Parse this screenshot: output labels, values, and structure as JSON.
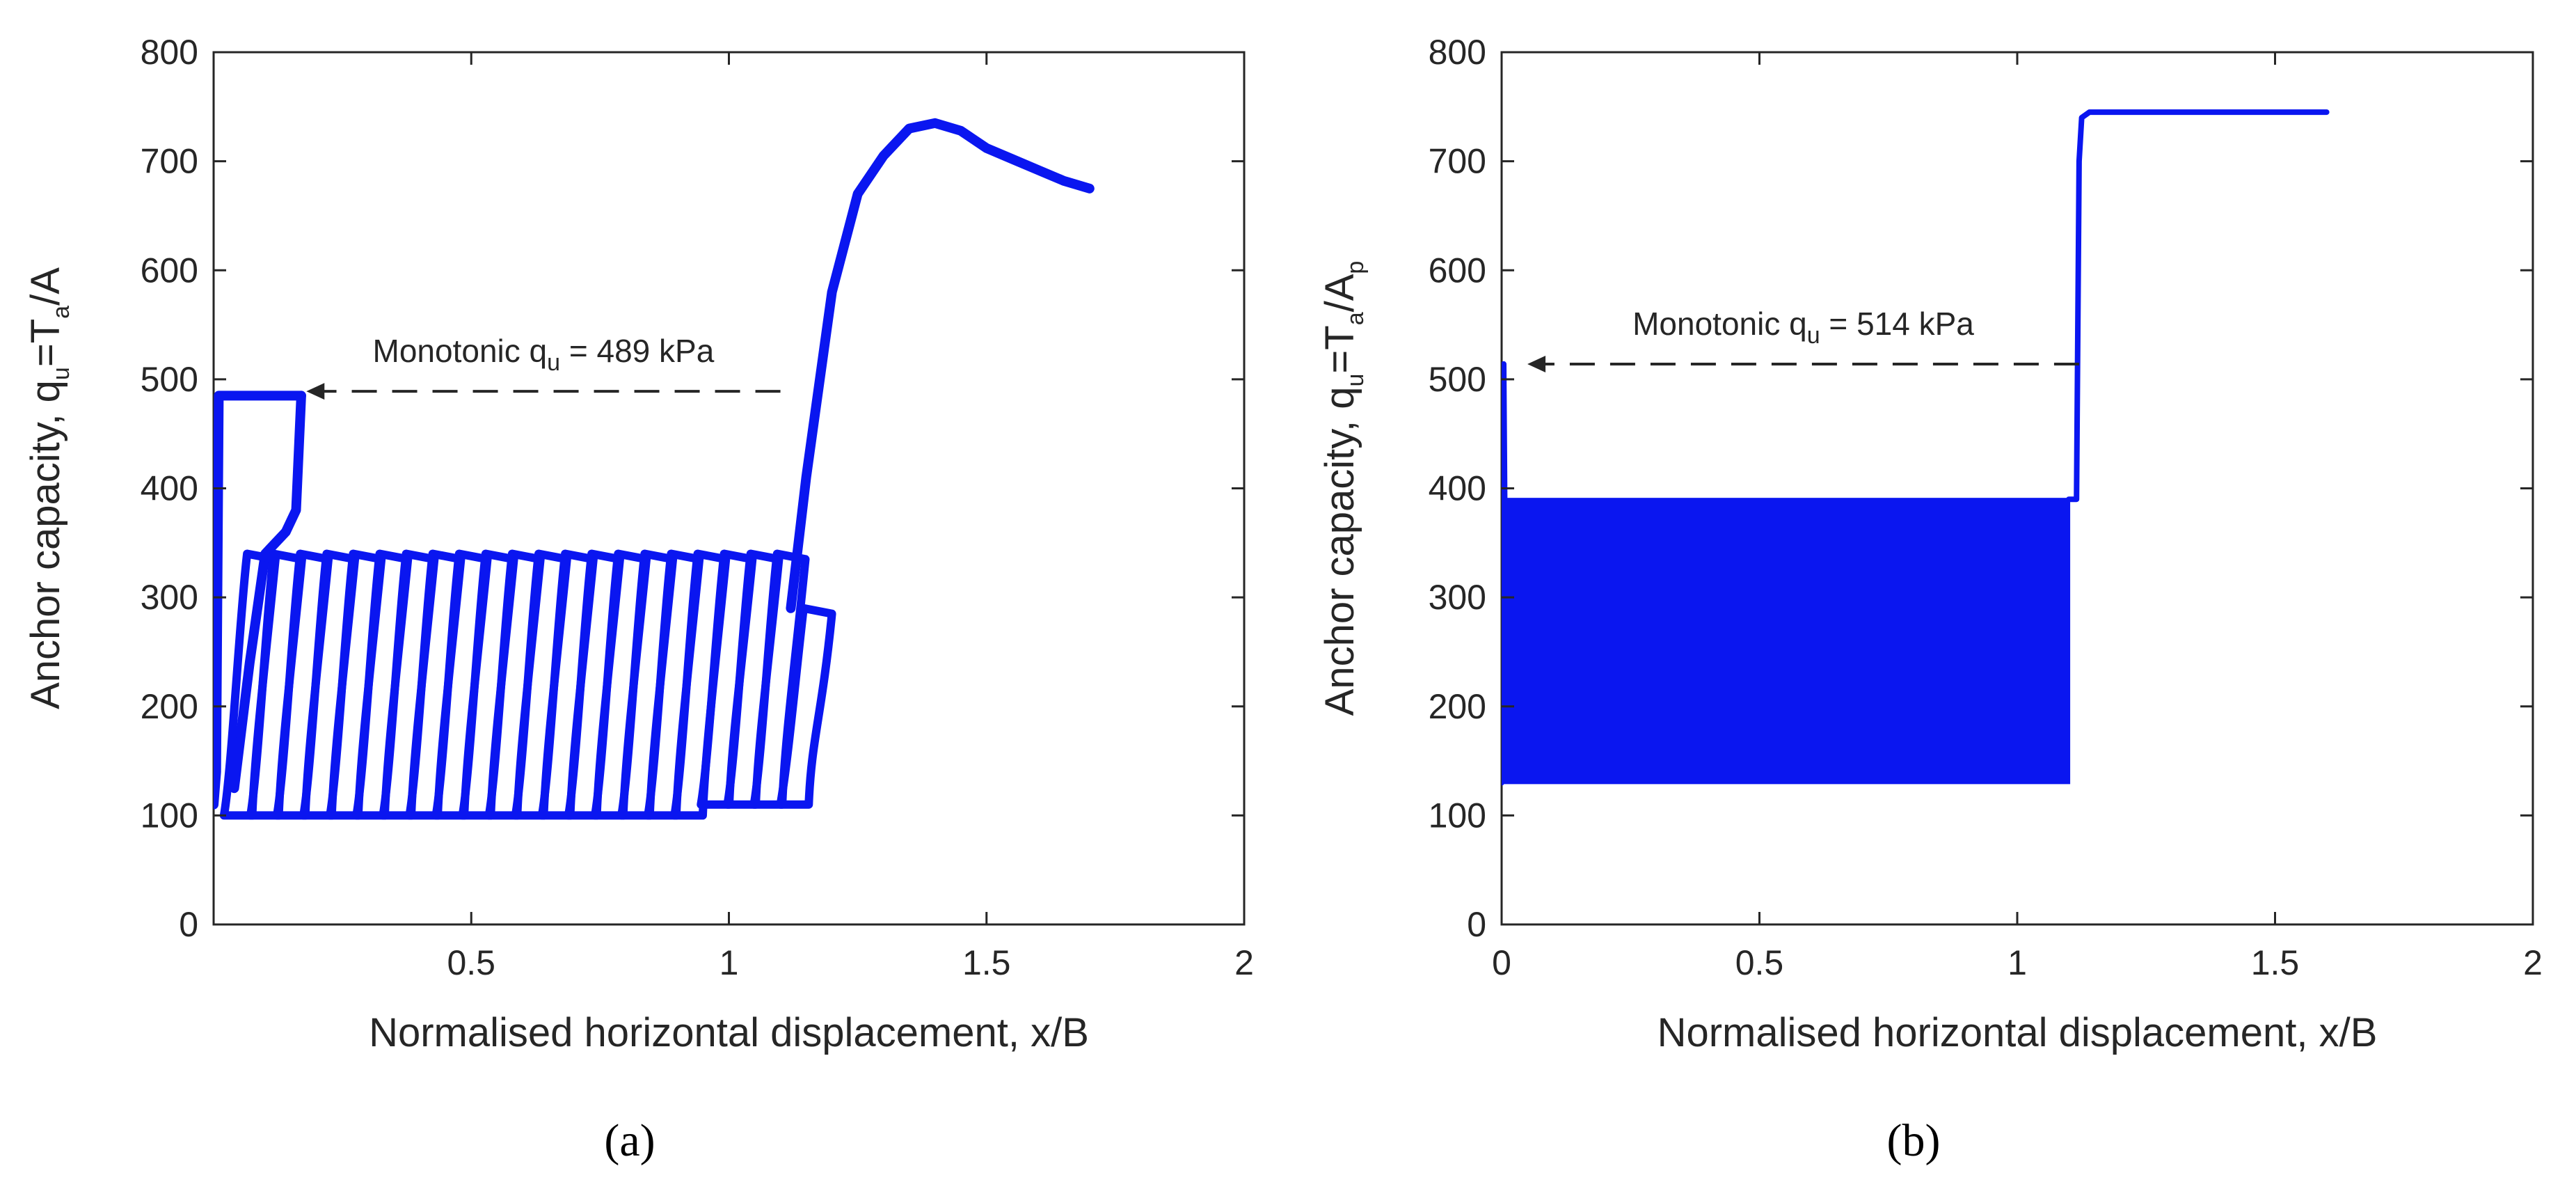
{
  "chart_data": [
    {
      "type": "line",
      "panel_label": "(a)",
      "panel_letter": "a",
      "xlabel": "Normalised horizontal displacement, x/B",
      "ylabel": {
        "prefix": "Anchor capacity, q",
        "sub1": "u",
        "mid": "=T",
        "sub2": "a",
        "suffix": "/A",
        "sub3": ""
      },
      "xlim": [
        0,
        2
      ],
      "ylim": [
        0,
        800
      ],
      "xticks": [
        0.5,
        1,
        1.5,
        2
      ],
      "xtick_labels": [
        "0.5",
        "1",
        "1.5",
        "2"
      ],
      "yticks": [
        0,
        100,
        200,
        300,
        400,
        500,
        600,
        700,
        800
      ],
      "ytick_labels": [
        "0",
        "100",
        "200",
        "300",
        "400",
        "500",
        "600",
        "700",
        "800"
      ],
      "line_color": "#0a16f0",
      "annotation": {
        "prefix": "Monotonic q",
        "sub": "u",
        "suffix": " = 489 kPa",
        "value": 489,
        "arrow_from_x": 1.1,
        "arrow_to_x": 0.18
      },
      "series": [
        {
          "role": "monotonic-start",
          "x": [
            0.0,
            0.005,
            0.01,
            0.17
          ],
          "y": [
            110,
            140,
            485,
            485
          ]
        },
        {
          "role": "drop",
          "x": [
            0.17,
            0.16,
            0.14,
            0.1,
            0.07,
            0.04
          ],
          "y": [
            485,
            380,
            360,
            340,
            240,
            125
          ]
        },
        {
          "role": "cyclic",
          "cycles": {
            "x_start": 0.02,
            "x_end": 1.1,
            "count": 22,
            "y_min": 100,
            "y_max": 340,
            "width": 0.1,
            "end_y_min": 110,
            "end_y_max": 290
          }
        },
        {
          "role": "post-cyclic",
          "x": [
            1.12,
            1.15,
            1.2,
            1.25,
            1.3,
            1.35,
            1.4,
            1.45,
            1.5,
            1.55,
            1.6,
            1.65,
            1.7
          ],
          "y": [
            290,
            410,
            580,
            670,
            705,
            730,
            735,
            728,
            712,
            702,
            692,
            682,
            675
          ]
        }
      ]
    },
    {
      "type": "line",
      "panel_label": "(b)",
      "panel_letter": "b",
      "xlabel": "Normalised horizontal displacement, x/B",
      "ylabel": {
        "prefix": "Anchor capacity, q",
        "sub1": "u",
        "mid": "=T",
        "sub2": "a",
        "suffix": "/A",
        "sub3": "p"
      },
      "xlim": [
        0,
        2
      ],
      "ylim": [
        0,
        800
      ],
      "xticks": [
        0,
        0.5,
        1,
        1.5,
        2
      ],
      "xtick_labels": [
        "0",
        "0.5",
        "1",
        "1.5",
        "2"
      ],
      "yticks": [
        0,
        100,
        200,
        300,
        400,
        500,
        600,
        700,
        800
      ],
      "ytick_labels": [
        "0",
        "100",
        "200",
        "300",
        "400",
        "500",
        "600",
        "700",
        "800"
      ],
      "line_color": "#0a16f0",
      "annotation": {
        "prefix": "Monotonic q",
        "sub": "u",
        "suffix": " = 514 kPa",
        "value": 514,
        "arrow_from_x": 1.12,
        "arrow_to_x": 0.05
      },
      "series": [
        {
          "role": "monotonic-start",
          "x": [
            0.0,
            0.004,
            0.006
          ],
          "y": [
            130,
            514,
            390
          ]
        },
        {
          "role": "cyclic-band",
          "x_start": 0.006,
          "x_end": 1.1,
          "y_min": 130,
          "y_max": 390
        },
        {
          "role": "post-cyclic",
          "x": [
            1.1,
            1.115,
            1.12,
            1.125,
            1.14,
            1.2,
            1.4,
            1.6
          ],
          "y": [
            390,
            390,
            700,
            740,
            745,
            745,
            745,
            745
          ]
        }
      ]
    }
  ]
}
